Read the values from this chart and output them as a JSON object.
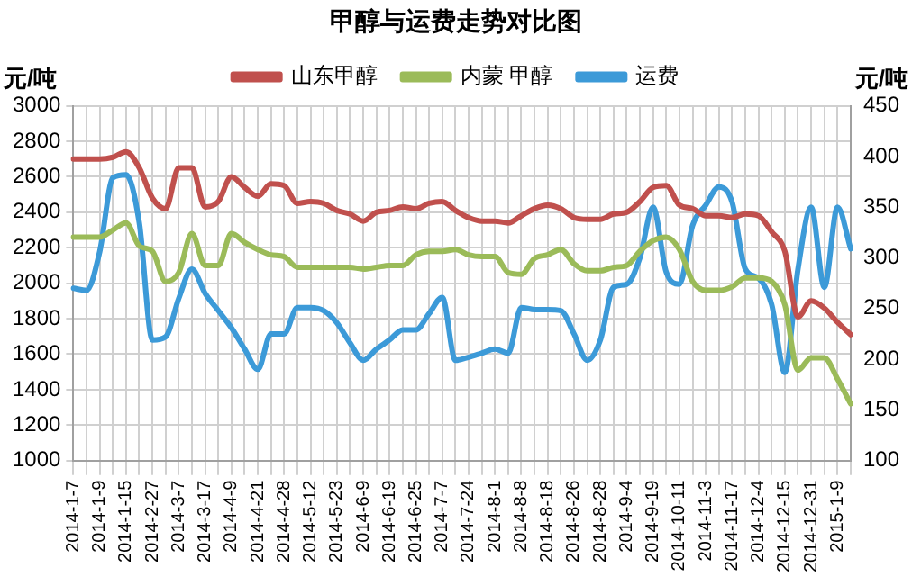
{
  "chart_data": {
    "type": "line",
    "title": "甲醇与运费走势对比图",
    "ylabel": "元/吨",
    "y2label": "元/吨",
    "categories": [
      "2014-1-7",
      null,
      "2014-1-9",
      null,
      "2014-1-15",
      null,
      "2014-2-27",
      null,
      "2014-3-7",
      null,
      "2014-3-17",
      null,
      "2014-4-9",
      null,
      "2014-4-21",
      null,
      "2014-4-28",
      null,
      "2014-5-12",
      null,
      "2014-5-23",
      null,
      "2014-6-9",
      null,
      "2014-6-19",
      null,
      "2014-6-25",
      null,
      "2014-7-7",
      null,
      "2014-7-24",
      null,
      "2014-8-1",
      null,
      "2014-8-8",
      null,
      "2014-8-18",
      null,
      "2014-8-26",
      null,
      "2014-8-28",
      null,
      "2014-9-4",
      null,
      "2014-9-19",
      null,
      "2014-10-11",
      null,
      "2014-11-3",
      null,
      "2014-11-17",
      null,
      "2014-12-4",
      null,
      "2014-12-15",
      null,
      "2014-12-31",
      null,
      "2015-1-9",
      null
    ],
    "series": [
      {
        "name": "山东甲醇",
        "color": "#c0504d",
        "values": [
          2700,
          2700,
          2700,
          2710,
          2740,
          2650,
          2480,
          2420,
          2650,
          2650,
          2430,
          2460,
          2600,
          2540,
          2490,
          2560,
          2550,
          2450,
          2460,
          2450,
          2410,
          2390,
          2350,
          2400,
          2410,
          2430,
          2420,
          2450,
          2460,
          2410,
          2370,
          2350,
          2350,
          2340,
          2380,
          2420,
          2440,
          2420,
          2370,
          2360,
          2360,
          2390,
          2400,
          2460,
          2540,
          2550,
          2440,
          2420,
          2380,
          2380,
          2370,
          2390,
          2380,
          2290,
          2180,
          1810,
          1900,
          1860,
          1780,
          1710
        ]
      },
      {
        "name": "内蒙 甲醇",
        "color": "#9bbb59",
        "values": [
          2260,
          2260,
          2260,
          2300,
          2340,
          2210,
          2180,
          2010,
          2060,
          2280,
          2100,
          2100,
          2280,
          2230,
          2190,
          2160,
          2150,
          2090,
          2090,
          2090,
          2090,
          2090,
          2080,
          2090,
          2100,
          2100,
          2160,
          2180,
          2180,
          2190,
          2160,
          2150,
          2150,
          2060,
          2050,
          2140,
          2160,
          2190,
          2110,
          2070,
          2070,
          2090,
          2100,
          2180,
          2240,
          2260,
          2190,
          2010,
          1960,
          1960,
          1980,
          2030,
          2030,
          2010,
          1880,
          1510,
          1580,
          1580,
          1460,
          1320
        ]
      },
      {
        "name": "运费",
        "color": "#3c9ad8",
        "axis": "y2",
        "values": [
          270,
          268,
          306,
          379,
          382,
          335,
          219,
          222,
          260,
          289,
          265,
          248,
          231,
          210,
          190,
          225,
          225,
          251,
          251,
          248,
          236,
          216,
          199,
          210,
          219,
          229,
          229,
          245,
          261,
          199,
          202,
          206,
          210,
          206,
          251,
          249,
          249,
          248,
          225,
          199,
          219,
          271,
          274,
          300,
          350,
          286,
          274,
          332,
          352,
          370,
          355,
          289,
          280,
          254,
          187,
          289,
          350,
          271,
          350,
          309
        ]
      }
    ],
    "ylim": [
      1000,
      3000
    ],
    "yticks": [
      1000,
      1200,
      1400,
      1600,
      1800,
      2000,
      2200,
      2400,
      2600,
      2800,
      3000
    ],
    "y2lim": [
      100,
      450
    ],
    "y2ticks": [
      100,
      150,
      200,
      250,
      300,
      350,
      400,
      450
    ],
    "grid": true,
    "legend": "top",
    "marker": "none",
    "line_style": "solid"
  }
}
